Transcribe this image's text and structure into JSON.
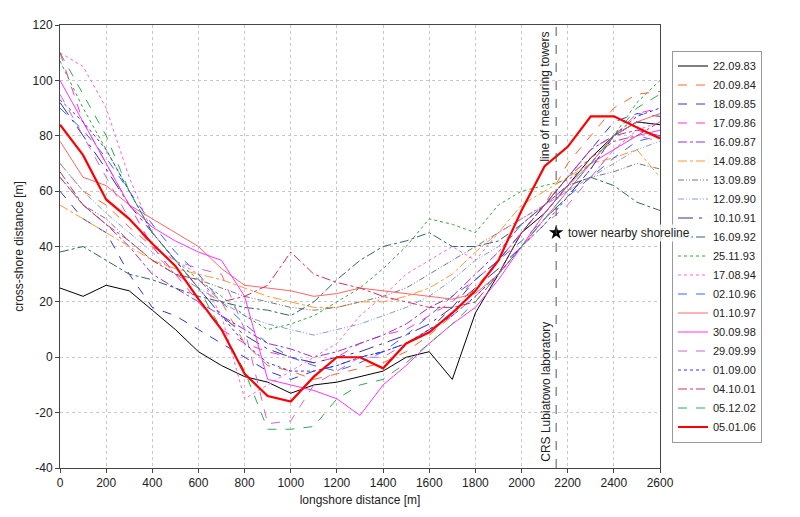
{
  "chart_data": {
    "type": "line",
    "x_label": "longshore distance [m]",
    "y_label": "cross-shore distance [m]",
    "x": [
      0,
      100,
      200,
      300,
      400,
      500,
      600,
      700,
      800,
      900,
      1000,
      1100,
      1200,
      1300,
      1400,
      1500,
      1600,
      1700,
      1800,
      1900,
      2000,
      2100,
      2200,
      2300,
      2400,
      2500,
      2600
    ],
    "xlim": [
      0,
      2600
    ],
    "xticks": [
      0,
      200,
      400,
      600,
      800,
      1000,
      1200,
      1400,
      1600,
      1800,
      2000,
      2200,
      2400,
      2600
    ],
    "ylim": [
      -40,
      120
    ],
    "yticks": [
      -40,
      -20,
      0,
      20,
      40,
      60,
      80,
      100,
      120
    ],
    "grid": true,
    "legend": "right",
    "annotations": [
      {
        "text": "line of measuring towers",
        "x": 2150
      },
      {
        "text": "CRS Lubiatowo laboratory",
        "x": 2150
      },
      {
        "text": "tower nearby shoreline",
        "x": 2150,
        "y": 45,
        "marker": "star"
      }
    ],
    "series": [
      {
        "name": "22.09.83",
        "color": "#000000",
        "line_style": "solid",
        "values": [
          25,
          22,
          26,
          24,
          17,
          10,
          2,
          -3,
          -7,
          -9,
          -13,
          -10,
          -9,
          -7,
          -5,
          0,
          2,
          -8,
          16,
          30,
          45,
          52,
          62,
          72,
          80,
          85,
          84
        ]
      },
      {
        "name": "20.09.84",
        "color": "#ff6633",
        "line_style": "dash",
        "values": [
          70,
          60,
          55,
          47,
          40,
          30,
          25,
          20,
          5,
          -3,
          -5,
          -8,
          -6,
          -4,
          -2,
          2,
          8,
          15,
          25,
          35,
          45,
          55,
          70,
          80,
          90,
          95,
          96
        ]
      },
      {
        "name": "18.09.85",
        "color": "#3333cc",
        "line_style": "dash",
        "values": [
          60,
          50,
          45,
          30,
          18,
          15,
          10,
          5,
          0,
          -5,
          -8,
          -5,
          -3,
          0,
          2,
          5,
          10,
          18,
          28,
          35,
          45,
          55,
          65,
          75,
          85,
          88,
          87
        ]
      },
      {
        "name": "17.09.86",
        "color": "#ff33cc",
        "line_style": "dash",
        "values": [
          110,
          85,
          70,
          55,
          40,
          30,
          20,
          10,
          5,
          2,
          0,
          -2,
          0,
          5,
          8,
          10,
          15,
          20,
          28,
          35,
          45,
          55,
          65,
          75,
          80,
          88,
          90
        ]
      },
      {
        "name": "16.09.87",
        "color": "#9933cc",
        "line_style": "dashdot",
        "values": [
          65,
          55,
          48,
          40,
          30,
          25,
          20,
          15,
          10,
          5,
          3,
          0,
          2,
          5,
          8,
          12,
          18,
          22,
          30,
          38,
          48,
          55,
          65,
          75,
          80,
          82,
          80
        ]
      },
      {
        "name": "14.09.88",
        "color": "#ff9933",
        "line_style": "dashdot",
        "values": [
          55,
          50,
          45,
          40,
          35,
          32,
          30,
          28,
          25,
          22,
          20,
          18,
          18,
          20,
          20,
          22,
          25,
          30,
          38,
          45,
          55,
          60,
          65,
          70,
          72,
          75,
          65
        ]
      },
      {
        "name": "13.09.89",
        "color": "#777777",
        "line_style": "dashdotdot",
        "values": [
          65,
          55,
          50,
          42,
          35,
          30,
          28,
          25,
          22,
          20,
          18,
          17,
          18,
          20,
          22,
          25,
          30,
          35,
          40,
          45,
          50,
          55,
          62,
          65,
          67,
          70,
          68
        ]
      },
      {
        "name": "12.09.90",
        "color": "#8899dd",
        "line_style": "dashdotdot",
        "values": [
          70,
          60,
          52,
          45,
          38,
          30,
          25,
          20,
          15,
          12,
          10,
          8,
          10,
          12,
          15,
          18,
          22,
          28,
          35,
          40,
          48,
          55,
          60,
          65,
          70,
          75,
          78
        ]
      },
      {
        "name": "10.10.91",
        "color": "#333399",
        "line_style": "longdashdot",
        "values": [
          92,
          80,
          68,
          55,
          45,
          35,
          25,
          15,
          8,
          3,
          0,
          -2,
          0,
          2,
          5,
          8,
          12,
          18,
          25,
          32,
          40,
          50,
          58,
          68,
          80,
          85,
          84
        ]
      },
      {
        "name": "16.09.92",
        "color": "#336666",
        "line_style": "dashdot",
        "values": [
          38,
          40,
          35,
          30,
          28,
          25,
          22,
          20,
          18,
          17,
          15,
          20,
          28,
          35,
          40,
          42,
          45,
          40,
          40,
          42,
          48,
          55,
          62,
          65,
          62,
          56,
          53
        ]
      },
      {
        "name": "25.11.93",
        "color": "#33aa33",
        "line_style": "dot",
        "values": [
          107,
          90,
          75,
          60,
          45,
          35,
          28,
          22,
          15,
          10,
          12,
          15,
          20,
          25,
          32,
          40,
          50,
          48,
          45,
          55,
          60,
          62,
          64,
          70,
          80,
          92,
          100
        ]
      },
      {
        "name": "17.08.94",
        "color": "#ff66cc",
        "line_style": "dot",
        "values": [
          110,
          105,
          90,
          65,
          45,
          35,
          30,
          15,
          -15,
          -10,
          -5,
          0,
          5,
          15,
          22,
          30,
          35,
          40,
          35,
          45,
          50,
          55,
          60,
          65,
          75,
          82,
          85
        ]
      },
      {
        "name": "02.10.96",
        "color": "#3366ff",
        "line_style": "dash",
        "values": [
          90,
          82,
          72,
          60,
          48,
          38,
          30,
          20,
          12,
          5,
          0,
          -3,
          -5,
          -2,
          2,
          8,
          15,
          22,
          28,
          35,
          42,
          50,
          58,
          65,
          72,
          78,
          80
        ]
      },
      {
        "name": "01.10.97",
        "color": "#ff6666",
        "line_style": "solid",
        "values": [
          78,
          65,
          62,
          55,
          50,
          45,
          40,
          32,
          26,
          25,
          24,
          22,
          23,
          25,
          24,
          23,
          22,
          21,
          23,
          30,
          40,
          50,
          60,
          70,
          80,
          85,
          88
        ]
      },
      {
        "name": "30.09.98",
        "color": "#ff33ff",
        "line_style": "solid",
        "values": [
          100,
          85,
          70,
          55,
          47,
          42,
          38,
          35,
          22,
          -8,
          -10,
          -12,
          -15,
          -21,
          -10,
          -3,
          5,
          12,
          18,
          28,
          40,
          52,
          62,
          70,
          75,
          80,
          82
        ]
      },
      {
        "name": "29.09.99",
        "color": "#cc66cc",
        "line_style": "dash",
        "values": [
          95,
          80,
          65,
          50,
          40,
          35,
          32,
          30,
          10,
          -24,
          -23,
          -10,
          -5,
          0,
          0,
          5,
          10,
          15,
          22,
          30,
          40,
          48,
          55,
          65,
          75,
          80,
          78
        ]
      },
      {
        "name": "01.09.00",
        "color": "#3333ff",
        "line_style": "dot",
        "values": [
          93,
          85,
          75,
          60,
          45,
          35,
          25,
          15,
          5,
          -2,
          -5,
          -5,
          -3,
          0,
          2,
          5,
          10,
          15,
          22,
          30,
          40,
          48,
          58,
          68,
          80,
          87,
          90
        ]
      },
      {
        "name": "04.10.01",
        "color": "#cc3366",
        "line_style": "dashdot",
        "values": [
          67,
          55,
          48,
          42,
          35,
          30,
          28,
          20,
          22,
          26,
          38,
          30,
          27,
          25,
          22,
          20,
          18,
          18,
          20,
          30,
          45,
          55,
          65,
          72,
          78,
          80,
          85
        ]
      },
      {
        "name": "05.12.02",
        "color": "#33aa55",
        "line_style": "dash",
        "values": [
          110,
          95,
          80,
          60,
          45,
          35,
          25,
          10,
          -5,
          -26,
          -26,
          -25,
          -15,
          -10,
          -8,
          -2,
          5,
          12,
          20,
          30,
          40,
          50,
          60,
          70,
          80,
          90,
          95
        ]
      },
      {
        "name": "05.01.06",
        "color": "#ff0000",
        "line_style": "solid",
        "values": [
          84,
          73,
          57,
          50,
          41,
          33,
          21,
          10,
          -6,
          -14,
          -16,
          -7,
          0,
          0,
          -4,
          5,
          9,
          16,
          24,
          35,
          53,
          69,
          76,
          87,
          87,
          83,
          79
        ]
      }
    ]
  }
}
